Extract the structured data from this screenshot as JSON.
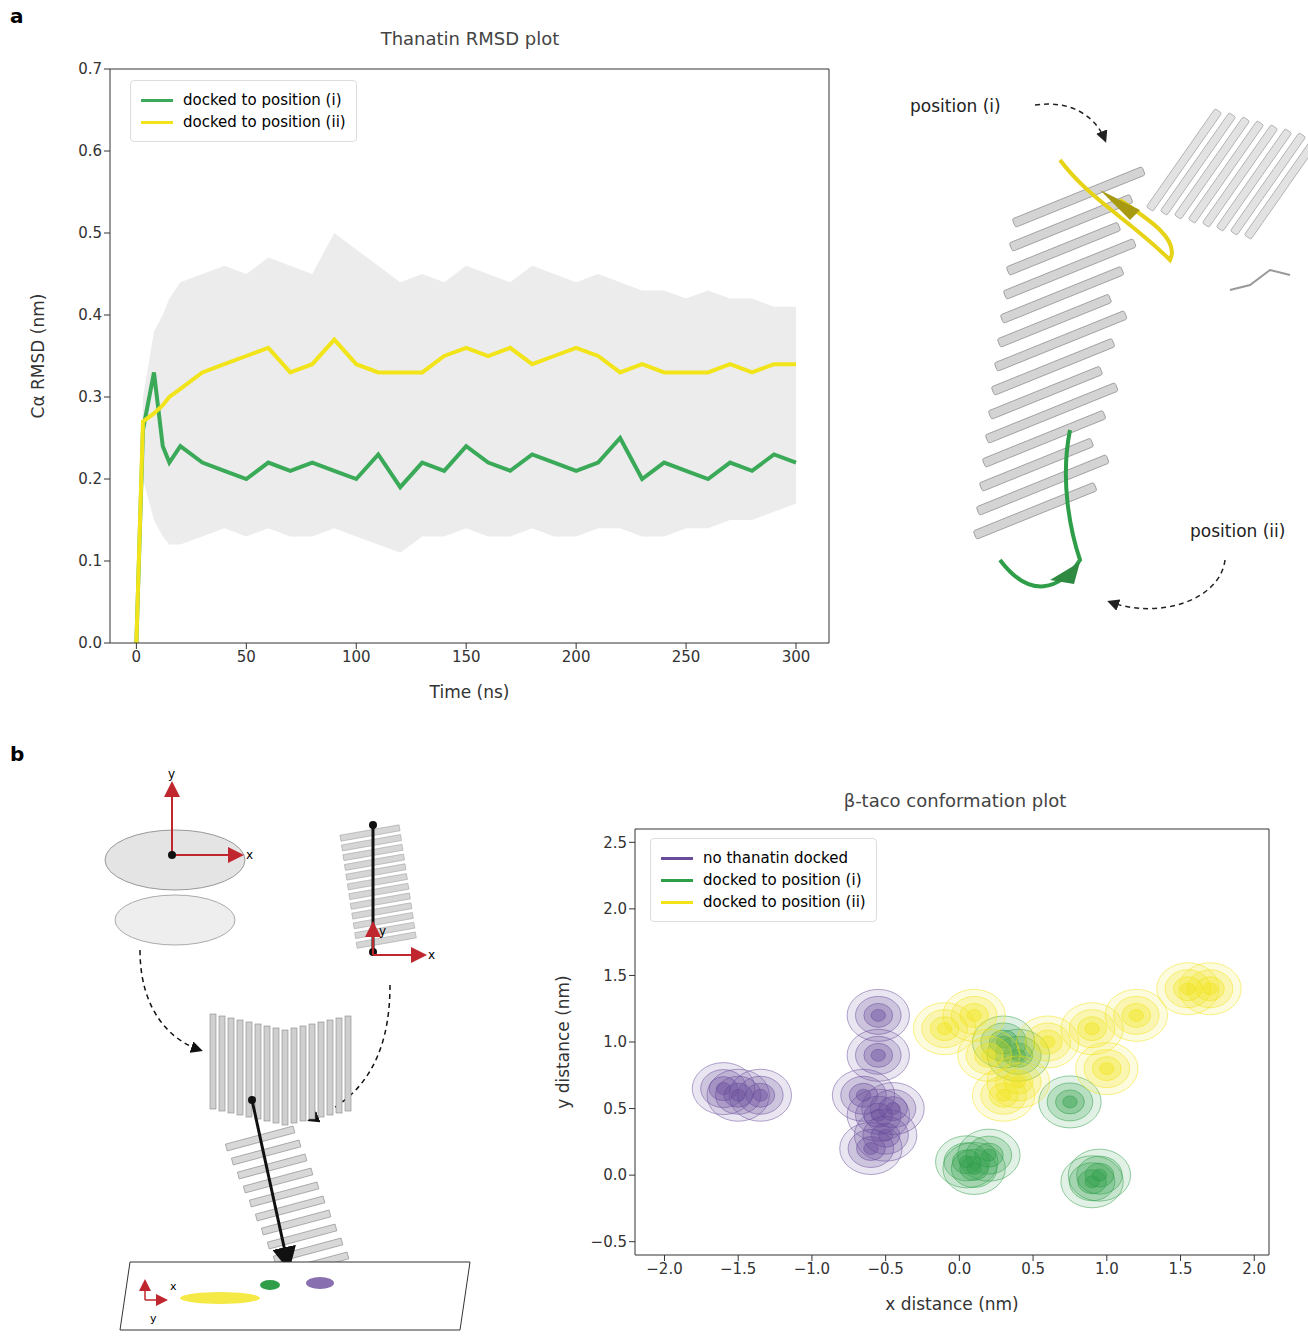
{
  "chart_data": [
    {
      "type": "line",
      "panel": "a",
      "title": "Thanatin RMSD plot",
      "x_label": "Time (ns)",
      "y_label": "Cα RMSD (nm)",
      "x": [
        0,
        3,
        8,
        12,
        15,
        20,
        30,
        40,
        50,
        60,
        70,
        80,
        90,
        100,
        110,
        120,
        130,
        140,
        150,
        160,
        170,
        180,
        190,
        200,
        210,
        220,
        230,
        240,
        250,
        260,
        270,
        280,
        290,
        300
      ],
      "series": [
        {
          "name": "docked to position (i)",
          "color": "#3aaa58",
          "values": [
            0,
            0.26,
            0.33,
            0.24,
            0.22,
            0.24,
            0.22,
            0.21,
            0.2,
            0.22,
            0.21,
            0.22,
            0.21,
            0.2,
            0.23,
            0.19,
            0.22,
            0.21,
            0.24,
            0.22,
            0.21,
            0.23,
            0.22,
            0.21,
            0.22,
            0.25,
            0.2,
            0.22,
            0.21,
            0.2,
            0.22,
            0.21,
            0.23,
            0.22
          ]
        },
        {
          "name": "docked to position (ii)",
          "color": "#f2e41a",
          "values": [
            0,
            0.27,
            0.28,
            0.29,
            0.3,
            0.31,
            0.33,
            0.34,
            0.35,
            0.36,
            0.33,
            0.34,
            0.37,
            0.34,
            0.33,
            0.33,
            0.33,
            0.35,
            0.36,
            0.35,
            0.36,
            0.34,
            0.35,
            0.36,
            0.35,
            0.33,
            0.34,
            0.33,
            0.33,
            0.33,
            0.34,
            0.33,
            0.34,
            0.34
          ]
        }
      ],
      "band": {
        "color": "#ececec",
        "lower": [
          0,
          0.2,
          0.15,
          0.13,
          0.12,
          0.12,
          0.13,
          0.14,
          0.13,
          0.14,
          0.13,
          0.13,
          0.14,
          0.13,
          0.12,
          0.11,
          0.13,
          0.13,
          0.14,
          0.13,
          0.13,
          0.14,
          0.13,
          0.13,
          0.14,
          0.14,
          0.13,
          0.13,
          0.14,
          0.14,
          0.15,
          0.15,
          0.16,
          0.17
        ],
        "upper": [
          0,
          0.3,
          0.38,
          0.4,
          0.42,
          0.44,
          0.45,
          0.46,
          0.45,
          0.47,
          0.46,
          0.45,
          0.5,
          0.48,
          0.46,
          0.44,
          0.45,
          0.44,
          0.46,
          0.45,
          0.44,
          0.46,
          0.45,
          0.44,
          0.45,
          0.44,
          0.43,
          0.43,
          0.42,
          0.43,
          0.42,
          0.42,
          0.41,
          0.41
        ]
      },
      "xlim": [
        -12,
        315
      ],
      "xticks": [
        0,
        50,
        100,
        150,
        200,
        250,
        300
      ],
      "ylim": [
        0,
        0.7
      ],
      "yticks": [
        {
          "value": 0,
          "label": "0.0"
        },
        0.1,
        0.2,
        0.3,
        0.4,
        0.5,
        0.6,
        0.7
      ],
      "legend": "top-left",
      "grid": false,
      "annotations": [
        "position (i)",
        "position (ii)"
      ]
    },
    {
      "type": "scatter",
      "panel": "b",
      "title": "β-taco conformation plot",
      "x_label": "x distance (nm)",
      "y_label": "y distance (nm)",
      "series": [
        {
          "name": "no thanatin docked",
          "color": "#6a4c9c",
          "x": [
            -1.5,
            -1.6,
            -1.35,
            -0.55,
            -0.55,
            -0.55,
            -0.5,
            -0.6,
            -0.45,
            -0.65
          ],
          "y": [
            0.6,
            0.65,
            0.6,
            1.2,
            0.9,
            0.45,
            0.3,
            0.2,
            0.5,
            0.6
          ]
        },
        {
          "name": "docked to position (i)",
          "color": "#2e9e48",
          "x": [
            0.05,
            0.2,
            0.1,
            0.4,
            0.75,
            0.9,
            0.95,
            0.3
          ],
          "y": [
            0.1,
            0.15,
            0.05,
            0.9,
            0.55,
            -0.05,
            0.0,
            1.0
          ]
        },
        {
          "name": "docked to position (ii)",
          "color": "#f2e416",
          "x": [
            -0.1,
            0.1,
            0.2,
            0.4,
            0.6,
            0.9,
            1.2,
            1.55,
            1.7,
            1.0,
            0.3
          ],
          "y": [
            1.1,
            1.2,
            0.9,
            0.7,
            1.0,
            1.1,
            1.2,
            1.4,
            1.4,
            0.8,
            0.6
          ]
        }
      ],
      "xlim": [
        -2.2,
        2.1
      ],
      "xticks": [
        {
          "value": -2,
          "label": "−2.0"
        },
        {
          "value": -1.5,
          "label": "−1.5"
        },
        {
          "value": -1,
          "label": "−1.0"
        },
        {
          "value": -0.5,
          "label": "−0.5"
        },
        {
          "value": 0,
          "label": "0.0"
        },
        0.5,
        {
          "value": 1,
          "label": "1.0"
        },
        1.5,
        {
          "value": 2,
          "label": "2.0"
        }
      ],
      "ylim": [
        -0.6,
        2.6
      ],
      "yticks": [
        {
          "value": -0.5,
          "label": "−0.5"
        },
        {
          "value": 0,
          "label": "0.0"
        },
        0.5,
        {
          "value": 1,
          "label": "1.0"
        },
        1.5,
        {
          "value": 2,
          "label": "2.0"
        },
        2.5
      ],
      "legend": "top-left",
      "grid": false,
      "annotations": [
        "x",
        "y"
      ]
    }
  ]
}
